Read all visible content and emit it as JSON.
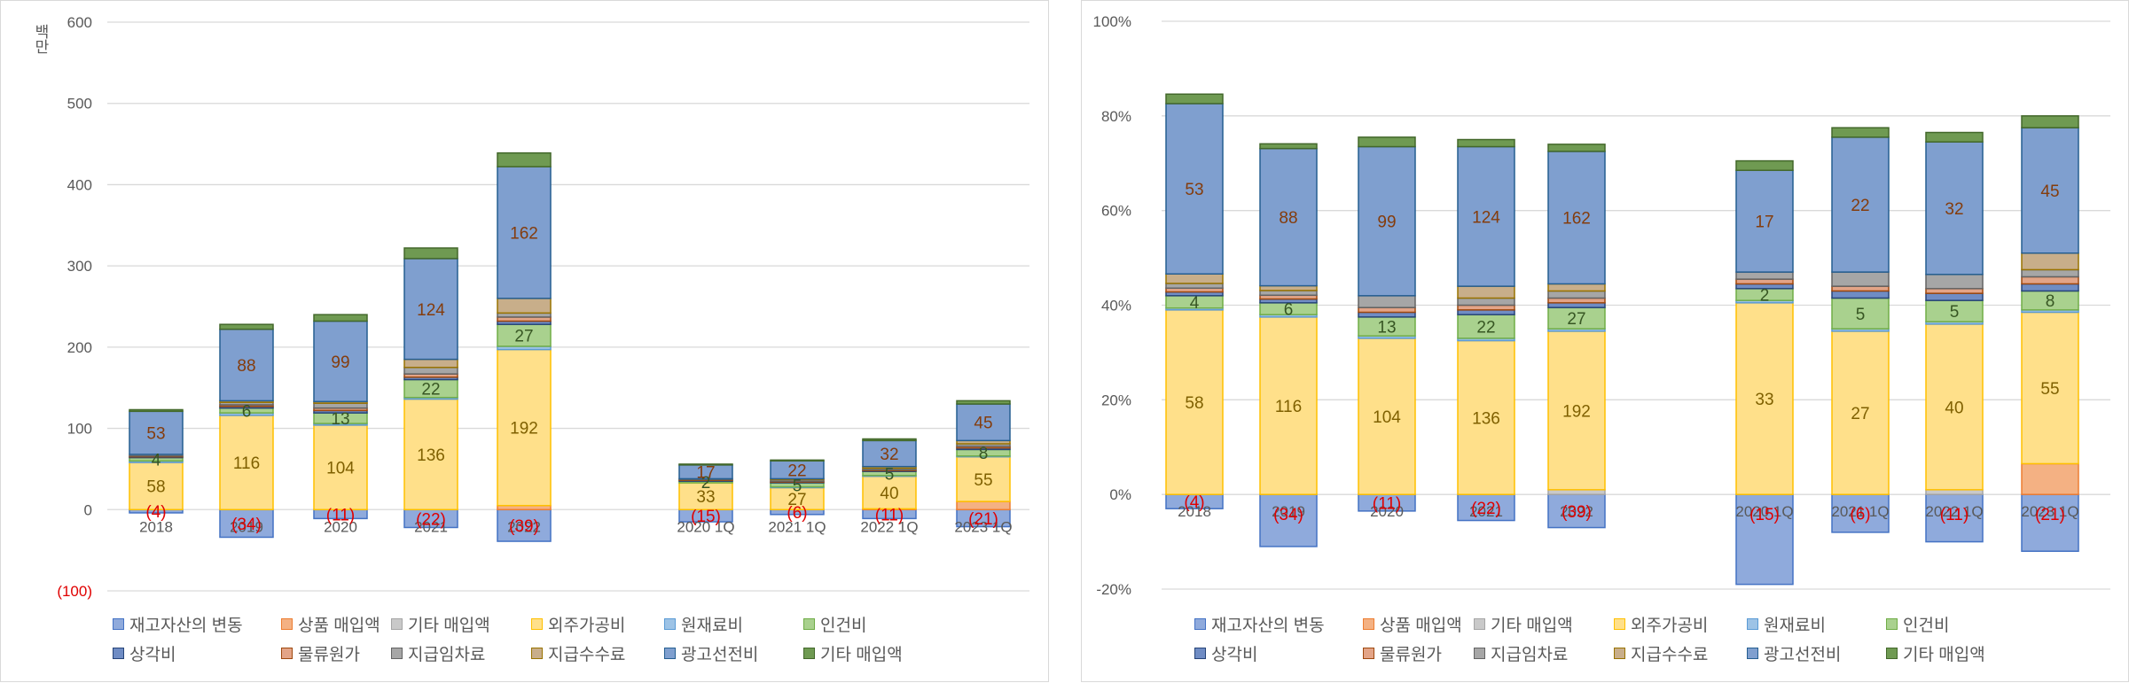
{
  "legend": [
    {
      "name": "재고자산의 변동",
      "fill": "#8faadc",
      "stroke": "#4472c4"
    },
    {
      "name": "상품 매입액",
      "fill": "#f4b183",
      "stroke": "#ed7d31"
    },
    {
      "name": "기타 매입액",
      "fill": "#c9c9c9",
      "stroke": "#a5a5a5"
    },
    {
      "name": "외주가공비",
      "fill": "#ffe08a",
      "stroke": "#ffc000"
    },
    {
      "name": "원재료비",
      "fill": "#9dc3e6",
      "stroke": "#5b9bd5"
    },
    {
      "name": "인건비",
      "fill": "#a9d18e",
      "stroke": "#70ad47"
    },
    {
      "name": "상각비",
      "fill": "#6f8cc4",
      "stroke": "#264478"
    },
    {
      "name": "물류원가",
      "fill": "#e3a487",
      "stroke": "#9e480e"
    },
    {
      "name": "지급임차료",
      "fill": "#a6a6a6",
      "stroke": "#636363"
    },
    {
      "name": "지급수수료",
      "fill": "#c8ae8a",
      "stroke": "#997300"
    },
    {
      "name": "광고선전비",
      "fill": "#7f9fcf",
      "stroke": "#255e91"
    },
    {
      "name": "기타 매입액",
      "fill": "#6f9a52",
      "stroke": "#43682b"
    }
  ],
  "chart_data": [
    {
      "type": "bar",
      "stacked": true,
      "categories": [
        "2018",
        "2019",
        "2020",
        "2021",
        "2022",
        "2020 1Q",
        "2021 1Q",
        "2022 1Q",
        "2023 1Q"
      ],
      "ylim": [
        -100,
        600
      ],
      "yticks": [
        "600",
        "500",
        "400",
        "300",
        "200",
        "100",
        "0",
        "(100)"
      ],
      "ylabel": "백만",
      "grid": true,
      "legend_position": "bottom",
      "series": [
        {
          "name": "재고자산의 변동",
          "values": [
            -4,
            -34,
            -11,
            -22,
            -39,
            -15,
            -6,
            -11,
            -21
          ]
        },
        {
          "name": "상품 매입액",
          "values": [
            0,
            0,
            0,
            0,
            5,
            0,
            0,
            1,
            10
          ]
        },
        {
          "name": "기타 매입액",
          "values": [
            0,
            0,
            0,
            0,
            0,
            0,
            0,
            0,
            0
          ]
        },
        {
          "name": "외주가공비",
          "values": [
            58,
            116,
            104,
            136,
            192,
            33,
            27,
            40,
            55
          ]
        },
        {
          "name": "원재료비",
          "values": [
            2,
            3,
            2,
            2,
            4,
            0,
            1,
            1,
            1
          ]
        },
        {
          "name": "인건비",
          "values": [
            4,
            6,
            13,
            22,
            27,
            2,
            5,
            5,
            8
          ]
        },
        {
          "name": "상각비",
          "values": [
            1,
            2,
            3,
            3,
            4,
            1,
            1,
            1,
            2
          ]
        },
        {
          "name": "물류원가",
          "values": [
            1,
            2,
            3,
            4,
            5,
            1,
            1,
            1,
            2
          ]
        },
        {
          "name": "지급임차료",
          "values": [
            2,
            3,
            6,
            8,
            5,
            1,
            2,
            2,
            3
          ]
        },
        {
          "name": "지급수수료",
          "values": [
            0,
            2,
            2,
            10,
            18,
            0,
            1,
            2,
            4
          ]
        },
        {
          "name": "광고선전비",
          "values": [
            53,
            88,
            99,
            124,
            162,
            17,
            22,
            32,
            45
          ]
        },
        {
          "name": "기타 매입액",
          "values": [
            2,
            6,
            8,
            13,
            17,
            1,
            1,
            2,
            4
          ]
        }
      ],
      "data_labels": [
        [
          "(4)",
          "58",
          "4",
          "53"
        ],
        [
          "(34)",
          "116",
          "6",
          "88"
        ],
        [
          "(11)",
          "104",
          "13",
          "99"
        ],
        [
          "(22)",
          "136",
          "22",
          "124"
        ],
        [
          "(39)",
          "192",
          "27",
          "162"
        ],
        [
          "(15)",
          "33",
          "2",
          "17"
        ],
        [
          "(6)",
          "27",
          "5",
          "22"
        ],
        [
          "(11)",
          "40",
          "5",
          "32"
        ],
        [
          "(21)",
          "55",
          "8",
          "45"
        ]
      ]
    },
    {
      "type": "bar",
      "stacked": true,
      "percent": true,
      "categories": [
        "2018",
        "2019",
        "2020",
        "2021",
        "2022",
        "2020 1Q",
        "2021 1Q",
        "2022 1Q",
        "2023 1Q"
      ],
      "ylim": [
        -0.2,
        1.0
      ],
      "yticks": [
        "100%",
        "80%",
        "60%",
        "40%",
        "20%",
        "0%",
        "-20%"
      ],
      "grid": true,
      "legend_position": "bottom",
      "series_pct": [
        [
          -0.03,
          0.0,
          0.0,
          0.39,
          0.004,
          0.026,
          0.008,
          0.008,
          0.01,
          0.02,
          0.36,
          0.02
        ],
        [
          -0.11,
          0.0,
          0.0,
          0.375,
          0.005,
          0.025,
          0.008,
          0.008,
          0.01,
          0.01,
          0.29,
          0.01
        ],
        [
          -0.035,
          0.0,
          0.0,
          0.33,
          0.005,
          0.04,
          0.01,
          0.01,
          0.025,
          0.0,
          0.315,
          0.02
        ],
        [
          -0.055,
          0.0,
          0.0,
          0.325,
          0.005,
          0.05,
          0.01,
          0.01,
          0.015,
          0.025,
          0.295,
          0.015
        ],
        [
          -0.07,
          0.0,
          0.01,
          0.335,
          0.005,
          0.045,
          0.01,
          0.01,
          0.015,
          0.015,
          0.28,
          0.015
        ],
        [
          -0.19,
          0.0,
          0.0,
          0.405,
          0.005,
          0.025,
          0.01,
          0.01,
          0.015,
          0.0,
          0.215,
          0.02
        ],
        [
          -0.08,
          0.0,
          0.0,
          0.345,
          0.005,
          0.065,
          0.015,
          0.01,
          0.03,
          0.0,
          0.285,
          0.02
        ],
        [
          -0.1,
          0.0,
          0.01,
          0.35,
          0.005,
          0.045,
          0.015,
          0.01,
          0.03,
          0.0,
          0.28,
          0.02
        ],
        [
          -0.12,
          0.065,
          0.0,
          0.32,
          0.005,
          0.04,
          0.015,
          0.015,
          0.015,
          0.035,
          0.265,
          0.025
        ]
      ],
      "data_labels": [
        [
          "(4)",
          "58",
          "4",
          "53"
        ],
        [
          "(34)",
          "116",
          "6",
          "88"
        ],
        [
          "(11)",
          "104",
          "13",
          "99"
        ],
        [
          "(22)",
          "136",
          "22",
          "124"
        ],
        [
          "(39)",
          "192",
          "27",
          "162"
        ],
        [
          "(15)",
          "33",
          "2",
          "17"
        ],
        [
          "(6)",
          "27",
          "5",
          "22"
        ],
        [
          "(11)",
          "40",
          "5",
          "32"
        ],
        [
          "(21)",
          "55",
          "8",
          "45"
        ]
      ]
    }
  ]
}
